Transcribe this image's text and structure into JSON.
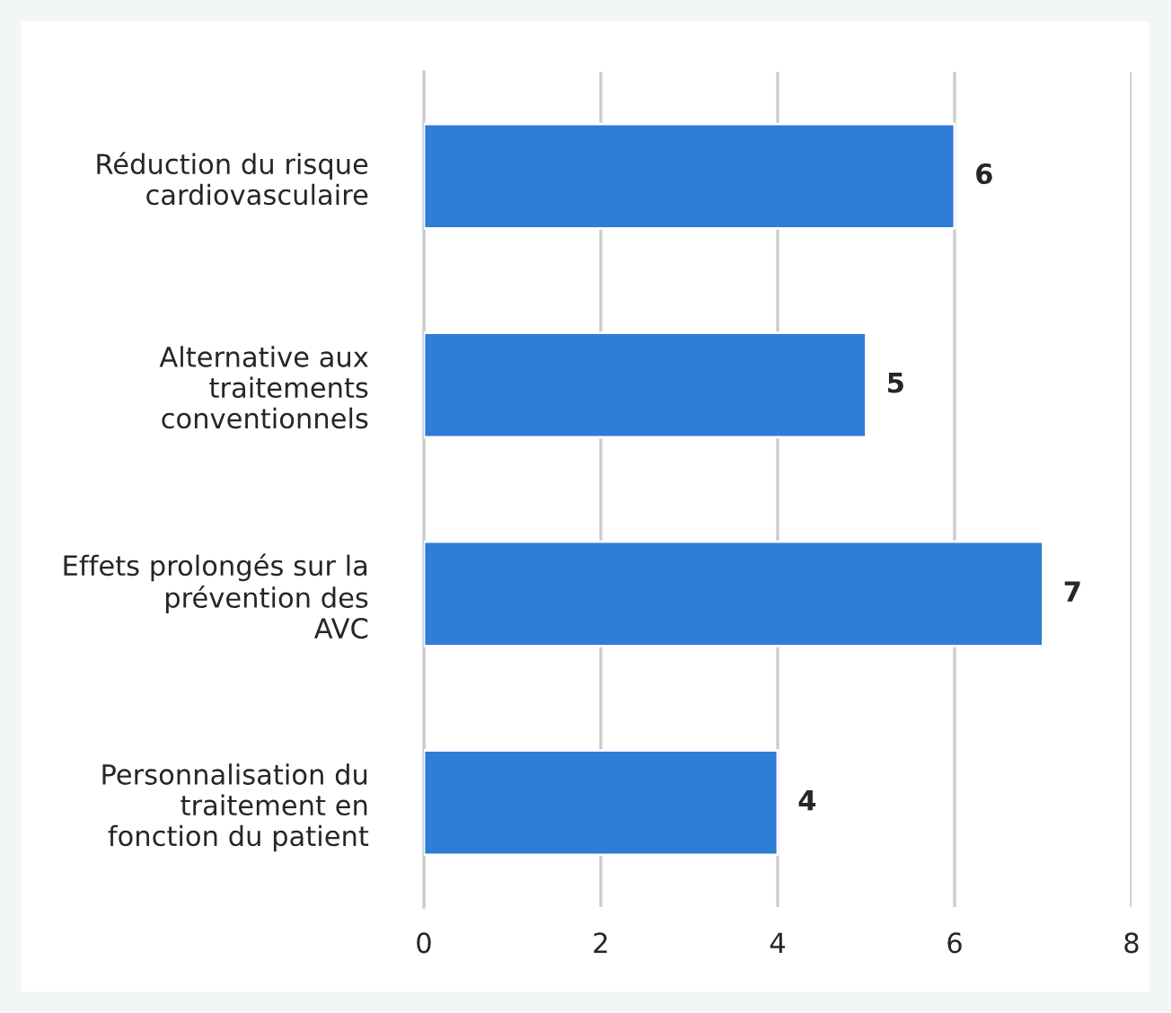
{
  "chart_data": {
    "type": "bar",
    "orientation": "horizontal",
    "categories": [
      "Réduction du risque\ncardiovasculaire",
      "Alternative aux\ntraitements\nconventionnels",
      "Effets prolongés sur la\nprévention des\nAVC",
      "Personnalisation du\ntraitement en\nfonction du patient"
    ],
    "values": [
      6,
      5,
      7,
      4
    ],
    "color": "#2e7dd7",
    "xlim": [
      0,
      8
    ],
    "xticks": [
      0,
      2,
      4,
      6,
      8
    ],
    "grid": "x",
    "data_labels": true
  }
}
